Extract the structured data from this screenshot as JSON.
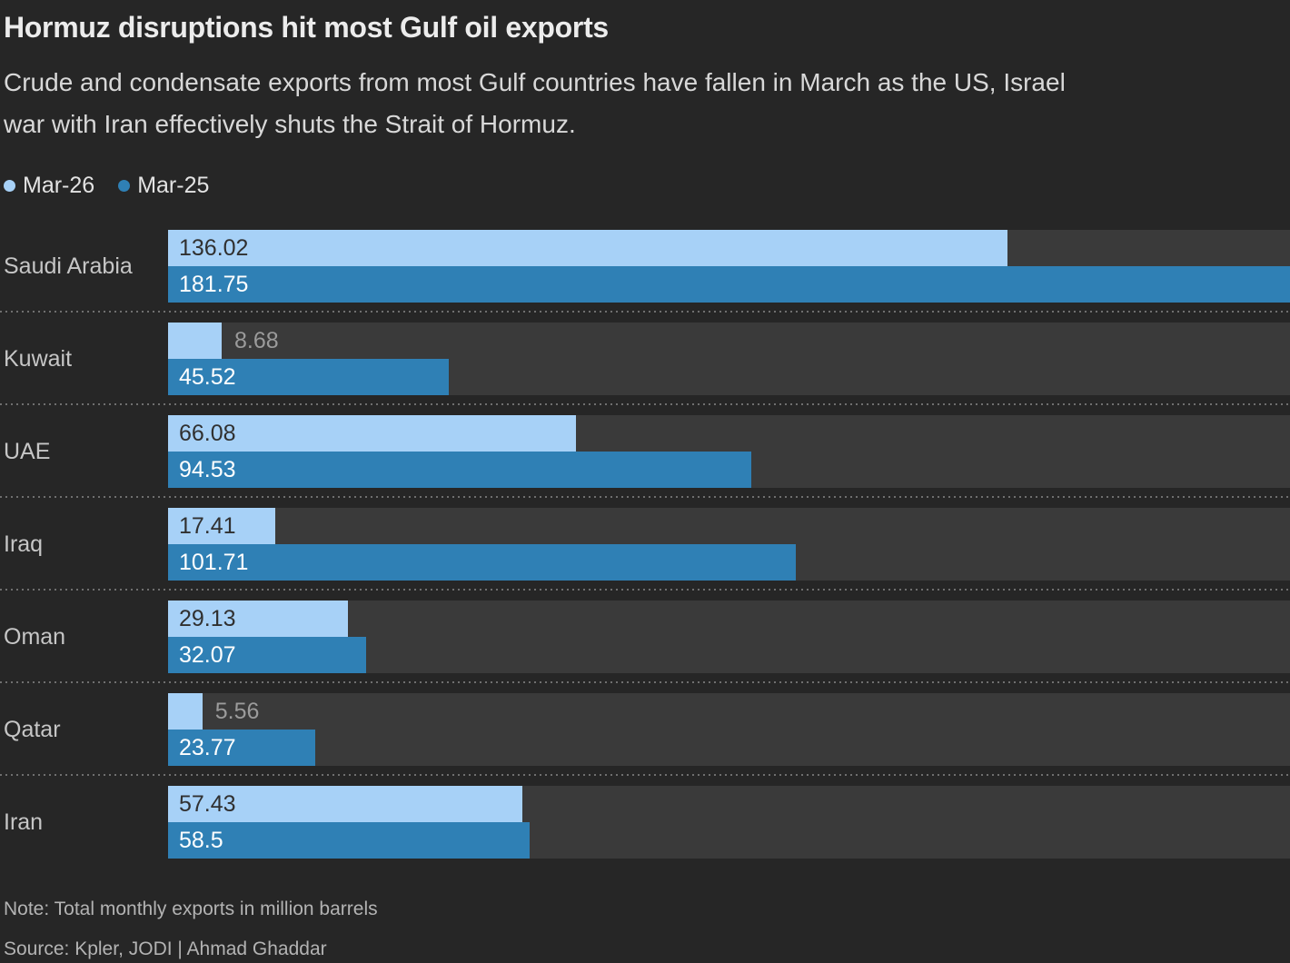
{
  "header": {
    "title": "Hormuz disruptions hit most Gulf oil exports",
    "subtitle_lines": [
      "Crude and condensate exports from most Gulf countries have fallen in March as the US, Israel",
      "war with Iran effectively shuts the Strait of Hormuz."
    ]
  },
  "legend": [
    {
      "label": "Mar-26",
      "color": "#a7d1f7"
    },
    {
      "label": "Mar-25",
      "color": "#2f80b5"
    }
  ],
  "chart_data": {
    "type": "bar",
    "orientation": "horizontal",
    "title": "Hormuz disruptions hit most Gulf oil exports",
    "unit": "million barrels",
    "categories": [
      "Saudi Arabia",
      "Kuwait",
      "UAE",
      "Iraq",
      "Oman",
      "Qatar",
      "Iran"
    ],
    "series": [
      {
        "name": "Mar-26",
        "color": "#a7d1f7",
        "values": [
          136.02,
          8.68,
          66.08,
          17.41,
          29.13,
          5.56,
          57.43
        ]
      },
      {
        "name": "Mar-25",
        "color": "#2f80b5",
        "values": [
          181.75,
          45.52,
          94.53,
          101.71,
          32.07,
          23.77,
          58.5
        ]
      }
    ],
    "value_axis_max": 181.75,
    "grid": false,
    "legend_position": "top-left",
    "value_labels": "inside-start, outside when bar too short"
  },
  "footer": {
    "note": "Note: Total monthly exports in million barrels",
    "source": "Source: Kpler, JODI | Ahmad Ghaddar"
  },
  "colors": {
    "background": "#262626",
    "bar_track": "#3a3a3a",
    "mar26_blue": "#a7d1f7",
    "mar25_blue": "#2f80b5",
    "separator": "#6f6f6f",
    "value_outside_text": "#9b9b9b"
  }
}
